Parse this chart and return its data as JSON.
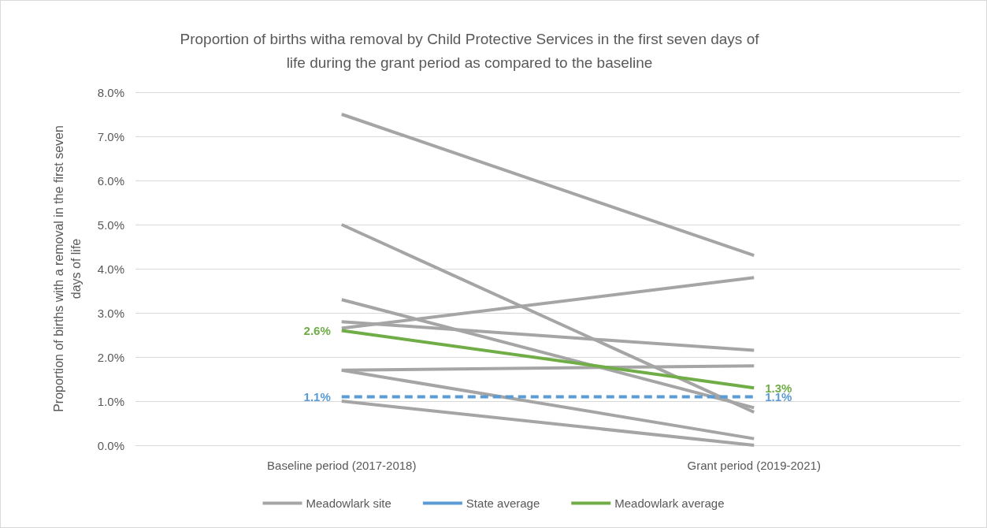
{
  "chart_data": {
    "type": "line",
    "title": "Proportion of births witha removal by Child Protective Services in the first seven days of\nlife during the grant period as compared to the baseline",
    "ylabel": "Proportion of births with a removal in the first seven\ndays of life",
    "categories": [
      "Baseline period (2017-2018)",
      "Grant period (2019-2021)"
    ],
    "ylim": [
      0,
      8
    ],
    "yticks": [
      {
        "value": 0,
        "label": "0.0%"
      },
      {
        "value": 1,
        "label": "1.0%"
      },
      {
        "value": 2,
        "label": "2.0%"
      },
      {
        "value": 3,
        "label": "3.0%"
      },
      {
        "value": 4,
        "label": "4.0%"
      },
      {
        "value": 5,
        "label": "5.0%"
      },
      {
        "value": 6,
        "label": "6.0%"
      },
      {
        "value": 7,
        "label": "7.0%"
      },
      {
        "value": 8,
        "label": "8.0%"
      }
    ],
    "grid": "y",
    "legend": "bottom",
    "series": [
      {
        "name": "Meadowlark site",
        "color": "#a5a5a5",
        "values": [
          7.5,
          4.3
        ]
      },
      {
        "color": "#a5a5a5",
        "values": [
          5.0,
          0.75
        ]
      },
      {
        "color": "#a5a5a5",
        "values": [
          3.3,
          0.85
        ]
      },
      {
        "color": "#a5a5a5",
        "values": [
          2.8,
          2.15
        ]
      },
      {
        "color": "#a5a5a5",
        "values": [
          2.65,
          3.8
        ]
      },
      {
        "color": "#a5a5a5",
        "values": [
          1.7,
          1.8
        ]
      },
      {
        "color": "#a5a5a5",
        "values": [
          1.7,
          0.15
        ]
      },
      {
        "color": "#a5a5a5",
        "values": [
          1.0,
          0.0
        ]
      },
      {
        "name": "State average",
        "color": "#5b9bd5",
        "line_style": "dashed",
        "values": [
          1.1,
          1.1
        ],
        "value_labels": [
          "1.1%",
          "1.1%"
        ]
      },
      {
        "name": "Meadowlark average",
        "color": "#70ad47",
        "values": [
          2.6,
          1.3
        ],
        "value_labels": [
          "2.6%",
          "1.3%"
        ]
      }
    ]
  }
}
